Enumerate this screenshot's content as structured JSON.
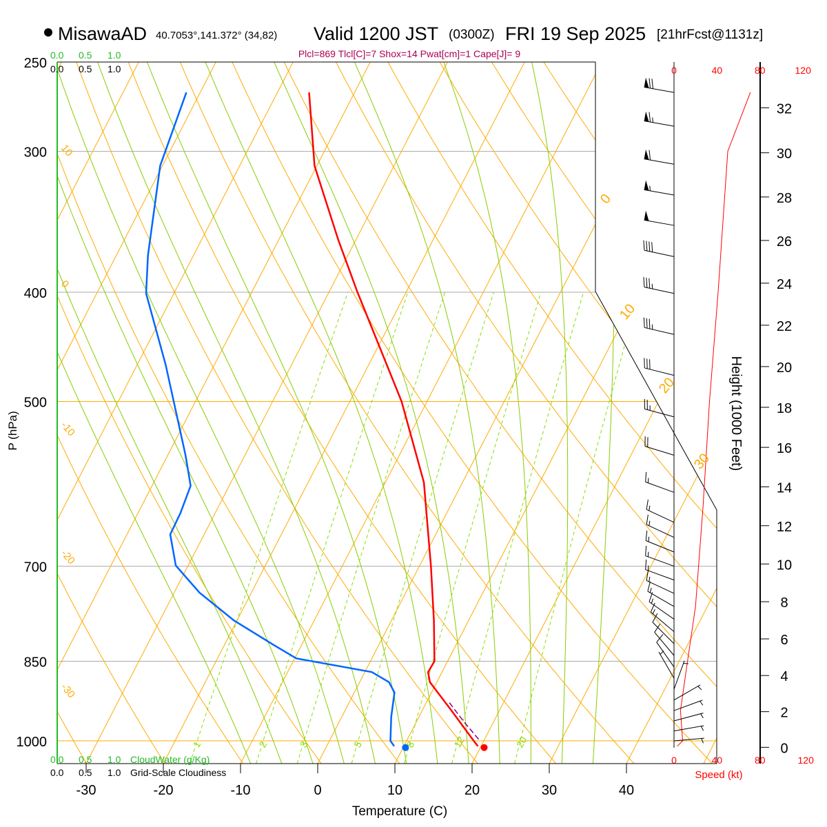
{
  "header": {
    "station": "MisawaAD",
    "coords": "40.7053°,141.372° (34,82)",
    "valid": "Valid 1200 JST",
    "utc": "(0300Z)",
    "date": "FRI 19 Sep 2025",
    "forecast": "[21hrFcst@1131z]",
    "indices": "Plcl=869 Tlcl[C]=7 Shox=14 Pwat[cm]=1 Cape[J]= 9"
  },
  "colors": {
    "temperature": "#ff0000",
    "dewpoint": "#0066ff",
    "isotherm": "#ffaa00",
    "moist_adiabat": "#88cc00",
    "mixing_ratio": "#88dd00",
    "isobar": "#aaaaaa",
    "cloud_water": "#22bb22",
    "indices": "#aa0055",
    "parcel": "#880088"
  },
  "chart_data": {
    "type": "line",
    "subtype": "skew-t log-p",
    "xlabel": "Temperature (C)",
    "ylabel": "P (hPa)",
    "y2label": "Height (1000 Feet)",
    "speed_label": "Speed (kt)",
    "x_ticks": [
      -30,
      -20,
      -10,
      0,
      10,
      20,
      30,
      40
    ],
    "pressure_ticks": [
      250,
      300,
      400,
      500,
      700,
      850,
      1000
    ],
    "pressure_range": [
      250,
      1000
    ],
    "height_ticks_kft": [
      0,
      2,
      4,
      6,
      8,
      10,
      12,
      14,
      16,
      18,
      20,
      22,
      24,
      26,
      28,
      30,
      32
    ],
    "speed_ticks": [
      0,
      40,
      80,
      120
    ],
    "isotherm_labels": [
      "0",
      "10",
      "20",
      "30"
    ],
    "adiabat_labels": [
      "10",
      "0",
      "-10",
      "-20",
      "-30"
    ],
    "mixing_ratio_labels": [
      "1",
      "2",
      "3",
      "5",
      "8",
      "12",
      "20"
    ],
    "mixing_ratio_values": [
      1,
      2,
      3,
      5,
      8,
      12,
      20
    ],
    "cloud_scale": {
      "cloud_water_ticks": [
        "0.0",
        "0.5",
        "1.0"
      ],
      "cloud_water_label": "CloudWater (g/Kg)",
      "cloudiness_ticks": [
        "0.0",
        "0.5",
        "1.0"
      ],
      "cloudiness_label": "Grid-Scale Cloudiness"
    },
    "series": [
      {
        "name": "Temperature",
        "points": [
          [
            266,
            -45.9
          ],
          [
            309,
            -40.3
          ],
          [
            360,
            -32.2
          ],
          [
            400,
            -26.3
          ],
          [
            500,
            -13.3
          ],
          [
            590,
            -5.0
          ],
          [
            700,
            1.5
          ],
          [
            782,
            5.5
          ],
          [
            850,
            8.3
          ],
          [
            869,
            8.2
          ],
          [
            887,
            9.1
          ],
          [
            939,
            13.7
          ],
          [
            1000,
            18.7
          ],
          [
            1011,
            19.6
          ]
        ],
        "surface": [
          1011,
          20.5
        ]
      },
      {
        "name": "Dewpoint",
        "points": [
          [
            266,
            -61.8
          ],
          [
            309,
            -60.3
          ],
          [
            371,
            -55.9
          ],
          [
            401,
            -53.6
          ],
          [
            464,
            -46.3
          ],
          [
            558,
            -37.7
          ],
          [
            594,
            -35.0
          ],
          [
            628,
            -34.5
          ],
          [
            656,
            -34.4
          ],
          [
            699,
            -31.6
          ],
          [
            739,
            -26.7
          ],
          [
            782,
            -20.4
          ],
          [
            821,
            -13.8
          ],
          [
            845,
            -9.8
          ],
          [
            869,
            0.9
          ],
          [
            887,
            3.8
          ],
          [
            906,
            5.2
          ],
          [
            952,
            6.4
          ],
          [
            1000,
            7.9
          ],
          [
            1011,
            8.75
          ]
        ],
        "surface": [
          1011,
          10.3
        ]
      },
      {
        "name": "Parcel",
        "points": [
          [
            925,
            13.0
          ],
          [
            960,
            16.0
          ],
          [
            1000,
            19.5
          ]
        ]
      },
      {
        "name": "Wind Speed",
        "points": [
          [
            1011,
            3
          ],
          [
            1000,
            8
          ],
          [
            940,
            6
          ],
          [
            870,
            11
          ],
          [
            760,
            20
          ],
          [
            620,
            27
          ],
          [
            500,
            33
          ],
          [
            400,
            41
          ],
          [
            300,
            50
          ],
          [
            200,
            59
          ],
          [
            266,
            71
          ]
        ]
      }
    ],
    "wind_barbs": [
      {
        "p": 266,
        "dir": 280,
        "spd": 70
      },
      {
        "p": 285,
        "dir": 280,
        "spd": 65
      },
      {
        "p": 308,
        "dir": 280,
        "spd": 60
      },
      {
        "p": 328,
        "dir": 280,
        "spd": 55
      },
      {
        "p": 349,
        "dir": 280,
        "spd": 50
      },
      {
        "p": 372,
        "dir": 282,
        "spd": 40
      },
      {
        "p": 401,
        "dir": 282,
        "spd": 35
      },
      {
        "p": 436,
        "dir": 283,
        "spd": 35
      },
      {
        "p": 474,
        "dir": 284,
        "spd": 30
      },
      {
        "p": 516,
        "dir": 285,
        "spd": 25
      },
      {
        "p": 558,
        "dir": 287,
        "spd": 20
      },
      {
        "p": 602,
        "dir": 290,
        "spd": 15
      },
      {
        "p": 640,
        "dir": 295,
        "spd": 15
      },
      {
        "p": 660,
        "dir": 295,
        "spd": 15
      },
      {
        "p": 680,
        "dir": 292,
        "spd": 15
      },
      {
        "p": 700,
        "dir": 290,
        "spd": 15
      },
      {
        "p": 720,
        "dir": 290,
        "spd": 15
      },
      {
        "p": 740,
        "dir": 295,
        "spd": 15
      },
      {
        "p": 760,
        "dir": 300,
        "spd": 15
      },
      {
        "p": 780,
        "dir": 305,
        "spd": 15
      },
      {
        "p": 800,
        "dir": 310,
        "spd": 15
      },
      {
        "p": 820,
        "dir": 315,
        "spd": 10
      },
      {
        "p": 840,
        "dir": 320,
        "spd": 10
      },
      {
        "p": 860,
        "dir": 325,
        "spd": 10
      },
      {
        "p": 880,
        "dir": 330,
        "spd": 5
      },
      {
        "p": 900,
        "dir": 20,
        "spd": 5
      },
      {
        "p": 920,
        "dir": 60,
        "spd": 5
      },
      {
        "p": 940,
        "dir": 70,
        "spd": 5
      },
      {
        "p": 960,
        "dir": 75,
        "spd": 5
      },
      {
        "p": 980,
        "dir": 80,
        "spd": 5
      },
      {
        "p": 1000,
        "dir": 85,
        "spd": 5
      }
    ]
  }
}
